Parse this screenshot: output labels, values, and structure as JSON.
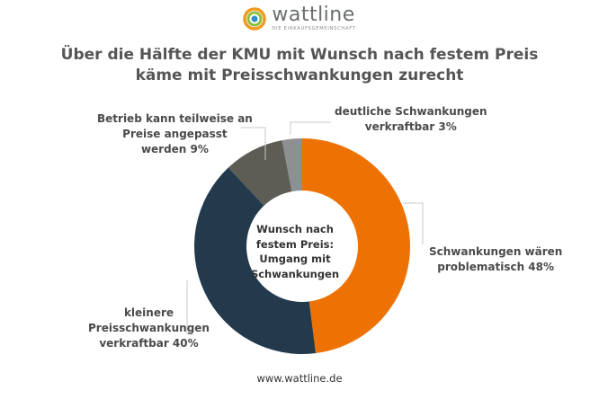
{
  "logo": {
    "name": "wattline",
    "subtitle": "DIE EINKAUFSGEMEINSCHAFT"
  },
  "title_lines": [
    "Über die Hälfte der KMU mit Wunsch nach festem Preis",
    "käme mit Preisschwankungen zurecht"
  ],
  "chart_data": {
    "type": "pie",
    "donut": true,
    "center_label_lines": [
      "Wunsch nach",
      "festem Preis:",
      "Umgang mit",
      "Schwankungen"
    ],
    "slices": [
      {
        "label_lines": [
          "deutliche Schwankungen",
          "verkraftbar 3%"
        ],
        "value": 3,
        "color": "#8e8f90"
      },
      {
        "label_lines": [
          "Schwankungen wären",
          "problematisch 48%"
        ],
        "value": 48,
        "color": "#ee7203"
      },
      {
        "label_lines": [
          "kleinere",
          "Preisschwankungen",
          "verkraftbar 40%"
        ],
        "value": 40,
        "color": "#233a4d"
      },
      {
        "label_lines": [
          "Betrieb kann teilweise an",
          "Preise angepasst",
          "werden 9%"
        ],
        "value": 9,
        "color": "#5d5d55"
      }
    ]
  },
  "footer": "www.wattline.de"
}
